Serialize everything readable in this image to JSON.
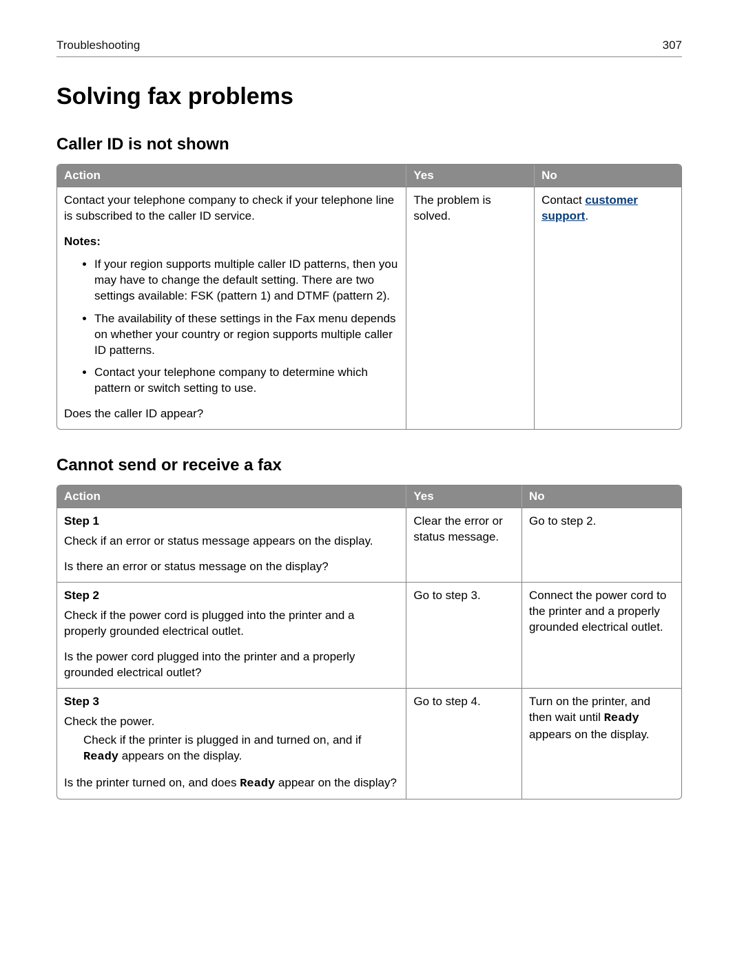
{
  "header": {
    "section": "Troubleshooting",
    "page_number": "307"
  },
  "title": "Solving fax problems",
  "colors": {
    "header_bg": "#8b8b8b",
    "header_text": "#ffffff",
    "border": "#808080",
    "link": "#0a3e7a",
    "text": "#000000",
    "background": "#ffffff"
  },
  "sections": [
    {
      "heading": "Caller ID is not shown",
      "columns": {
        "action": "Action",
        "yes": "Yes",
        "no": "No"
      },
      "rows": [
        {
          "action_intro": "Contact your telephone company to check if your telephone line is subscribed to the caller ID service.",
          "notes_label": "Notes:",
          "notes": [
            "If your region supports multiple caller ID patterns, then you may have to change the default setting. There are two settings available: FSK (pattern 1) and DTMF (pattern 2).",
            "The availability of these settings in the Fax menu depends on whether your country or region supports multiple caller ID patterns.",
            "Contact your telephone company to determine which pattern or switch setting to use."
          ],
          "action_question": "Does the caller ID appear?",
          "yes": "The problem is solved.",
          "no_prefix": "Contact ",
          "no_link": "customer support",
          "no_suffix": "."
        }
      ]
    },
    {
      "heading": "Cannot send or receive a fax",
      "columns": {
        "action": "Action",
        "yes": "Yes",
        "no": "No"
      },
      "rows": [
        {
          "step": "Step 1",
          "body": "Check if an error or status message appears on the display.",
          "question": "Is there an error or status message on the display?",
          "yes": "Clear the error or status message.",
          "no": "Go to step 2."
        },
        {
          "step": "Step 2",
          "body": "Check if the power cord is plugged into the printer and a properly grounded electrical outlet.",
          "question": "Is the power cord plugged into the printer and a properly grounded electrical outlet?",
          "yes": "Go to step 3.",
          "no": "Connect the power cord to the printer and a properly grounded electrical outlet."
        },
        {
          "step": "Step 3",
          "body": "Check the power.",
          "indent_pre": "Check if the printer is plugged in and turned on, and if ",
          "indent_mono": "Ready",
          "indent_post": " appears on the display.",
          "question_pre": "Is the printer turned on, and does ",
          "question_mono": "Ready",
          "question_post": " appear on the display?",
          "yes": "Go to step 4.",
          "no_pre": "Turn on the printer, and then wait until ",
          "no_mono": "Ready",
          "no_post": " appears on the display."
        }
      ]
    }
  ]
}
